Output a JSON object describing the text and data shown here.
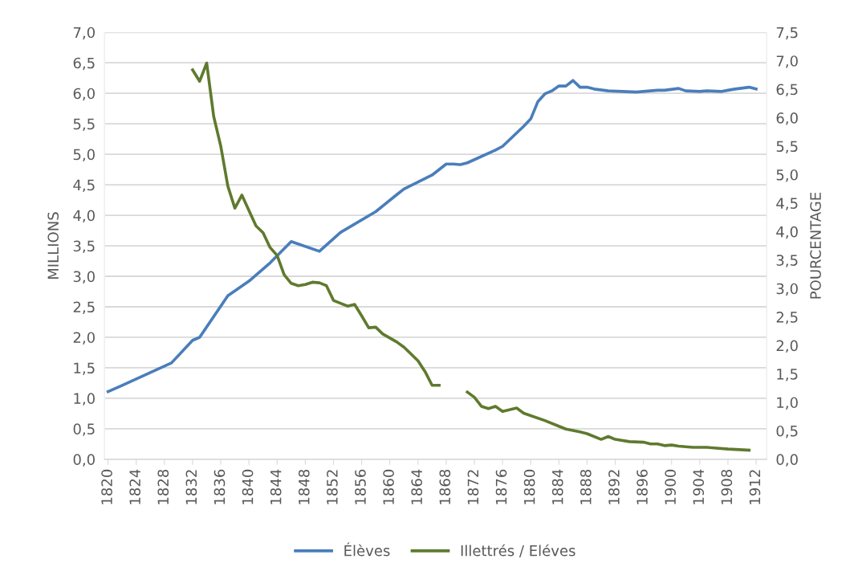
{
  "chart_data": {
    "type": "line",
    "ylabel": "MILLIONS",
    "y2label": "POURCENTAGE",
    "xlim": [
      1819.5,
      1913.5
    ],
    "xticks": [
      1820,
      1824,
      1828,
      1832,
      1836,
      1840,
      1844,
      1848,
      1852,
      1856,
      1860,
      1864,
      1868,
      1872,
      1876,
      1880,
      1884,
      1888,
      1892,
      1896,
      1900,
      1904,
      1908,
      1912
    ],
    "ylim": [
      0,
      7
    ],
    "yticks": [
      {
        "value": 0,
        "label": "0,0"
      },
      {
        "value": 0.5,
        "label": "0,5"
      },
      {
        "value": 1,
        "label": "1,0"
      },
      {
        "value": 1.5,
        "label": "1,5"
      },
      {
        "value": 2,
        "label": "2,0"
      },
      {
        "value": 2.5,
        "label": "2,5"
      },
      {
        "value": 3,
        "label": "3,0"
      },
      {
        "value": 3.5,
        "label": "3,5"
      },
      {
        "value": 4,
        "label": "4,0"
      },
      {
        "value": 4.5,
        "label": "4,5"
      },
      {
        "value": 5,
        "label": "5,0"
      },
      {
        "value": 5.5,
        "label": "5,5"
      },
      {
        "value": 6,
        "label": "6,0"
      },
      {
        "value": 6.5,
        "label": "6,5"
      },
      {
        "value": 7,
        "label": "7,0"
      }
    ],
    "y2lim": [
      0,
      7.5
    ],
    "y2ticks": [
      {
        "value": 0,
        "label": "0,0"
      },
      {
        "value": 0.5,
        "label": "0,5"
      },
      {
        "value": 1,
        "label": "1,0"
      },
      {
        "value": 1.5,
        "label": "1,5"
      },
      {
        "value": 2,
        "label": "2,0"
      },
      {
        "value": 2.5,
        "label": "2,5"
      },
      {
        "value": 3,
        "label": "3,0"
      },
      {
        "value": 3.5,
        "label": "3,5"
      },
      {
        "value": 4,
        "label": "4,0"
      },
      {
        "value": 4.5,
        "label": "4,5"
      },
      {
        "value": 5,
        "label": "5,0"
      },
      {
        "value": 5.5,
        "label": "5,5"
      },
      {
        "value": 6,
        "label": "6,0"
      },
      {
        "value": 6.5,
        "label": "6,5"
      },
      {
        "value": 7,
        "label": "7,0"
      },
      {
        "value": 7.5,
        "label": "7,5"
      }
    ],
    "grid": "y",
    "legend": "bottom",
    "marker": "none",
    "line_style": "solid",
    "series": [
      {
        "name": "Élèves",
        "color": "#4a7ebb",
        "x": [
          1820,
          1822,
          1829,
          1832,
          1833,
          1837,
          1840,
          1843,
          1846,
          1850,
          1853,
          1858,
          1861,
          1862,
          1866,
          1868,
          1869,
          1870,
          1871,
          1875,
          1876,
          1879,
          1880,
          1881,
          1882,
          1883,
          1884,
          1885,
          1886,
          1887,
          1888,
          1889,
          1891,
          1893,
          1895,
          1897,
          1898,
          1899,
          1901,
          1902,
          1904,
          1905,
          1907,
          1908,
          1909,
          1911,
          1912
        ],
        "values": [
          1.11,
          1.21,
          1.58,
          1.95,
          2.0,
          2.68,
          2.92,
          3.22,
          3.57,
          3.41,
          3.72,
          4.06,
          4.34,
          4.43,
          4.66,
          4.84,
          4.84,
          4.83,
          4.86,
          5.07,
          5.13,
          5.46,
          5.58,
          5.86,
          5.99,
          6.04,
          6.12,
          6.12,
          6.21,
          6.1,
          6.1,
          6.07,
          6.04,
          6.03,
          6.02,
          6.04,
          6.05,
          6.05,
          6.08,
          6.04,
          6.03,
          6.04,
          6.03,
          6.05,
          6.07,
          6.1,
          6.07
        ]
      },
      {
        "name": "Illettrés / Eléves",
        "color": "#5f7a2e",
        "axis": "y2",
        "x": [
          1832,
          1833,
          1834,
          1835,
          1836,
          1837,
          1838,
          1839,
          1841,
          1842,
          1843,
          1844,
          1845,
          1846,
          1847,
          1848,
          1849,
          1850,
          1851,
          1852,
          1854,
          1855,
          1856,
          1857,
          1858,
          1859,
          1860,
          1861,
          1862,
          1864,
          1865,
          1866,
          1867,
          1868,
          1869,
          1870,
          1871,
          1872,
          1873,
          1874,
          1875,
          1876,
          1878,
          1879,
          1882,
          1884,
          1885,
          1887,
          1888,
          1890,
          1891,
          1892,
          1894,
          1896,
          1897,
          1898,
          1899,
          1900,
          1901,
          1903,
          1905,
          1906,
          1908,
          1911
        ],
        "values": [
          6.84,
          6.64,
          6.96,
          6.02,
          5.5,
          4.8,
          4.41,
          4.64,
          4.1,
          3.98,
          3.72,
          3.58,
          3.24,
          3.09,
          3.05,
          3.07,
          3.11,
          3.1,
          3.05,
          2.79,
          2.69,
          2.72,
          2.52,
          2.31,
          2.32,
          2.2,
          2.13,
          2.06,
          1.97,
          1.73,
          1.54,
          1.3,
          1.3,
          null,
          null,
          null,
          1.18,
          1.09,
          0.93,
          0.89,
          0.93,
          0.84,
          0.9,
          0.81,
          0.68,
          0.58,
          0.53,
          0.48,
          0.45,
          0.35,
          0.4,
          0.35,
          0.31,
          0.3,
          0.27,
          0.27,
          0.24,
          0.25,
          0.23,
          0.21,
          0.21,
          0.2,
          0.18,
          0.16
        ]
      }
    ]
  }
}
